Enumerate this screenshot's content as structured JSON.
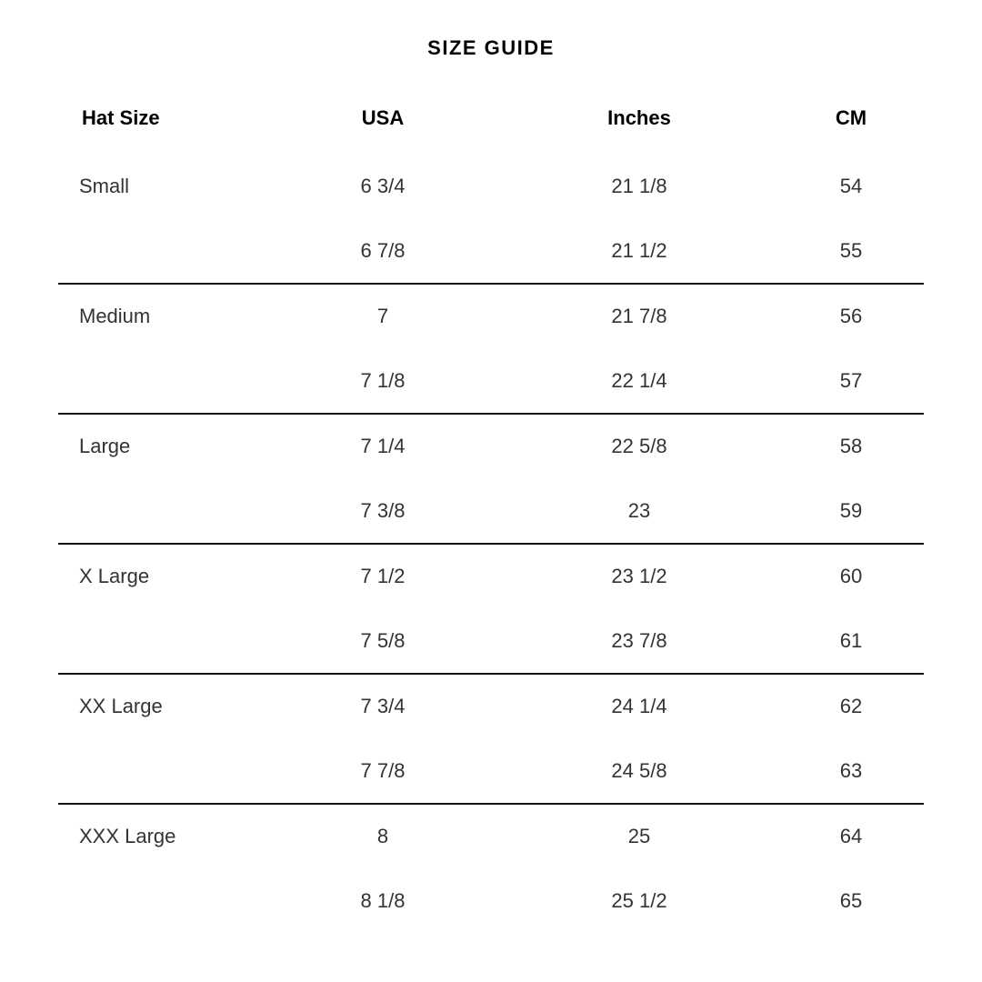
{
  "title": "SIZE GUIDE",
  "headers": [
    "Hat Size",
    "USA",
    "Inches",
    "CM"
  ],
  "groups": [
    {
      "size": "Small",
      "rows": [
        [
          "6 3/4",
          "21 1/8",
          "54"
        ],
        [
          "6 7/8",
          "21 1/2",
          "55"
        ]
      ]
    },
    {
      "size": "Medium",
      "rows": [
        [
          "7",
          "21 7/8",
          "56"
        ],
        [
          "7 1/8",
          "22 1/4",
          "57"
        ]
      ]
    },
    {
      "size": "Large",
      "rows": [
        [
          "7 1/4",
          "22 5/8",
          "58"
        ],
        [
          "7 3/8",
          "23",
          "59"
        ]
      ]
    },
    {
      "size": "X Large",
      "rows": [
        [
          "7 1/2",
          "23 1/2",
          "60"
        ],
        [
          "7 5/8",
          "23 7/8",
          "61"
        ]
      ]
    },
    {
      "size": "XX Large",
      "rows": [
        [
          "7 3/4",
          "24 1/4",
          "62"
        ],
        [
          "7 7/8",
          "24 5/8",
          "63"
        ]
      ]
    },
    {
      "size": "XXX Large",
      "rows": [
        [
          "8",
          "25",
          "64"
        ],
        [
          "8 1/8",
          "25 1/2",
          "65"
        ]
      ]
    }
  ]
}
